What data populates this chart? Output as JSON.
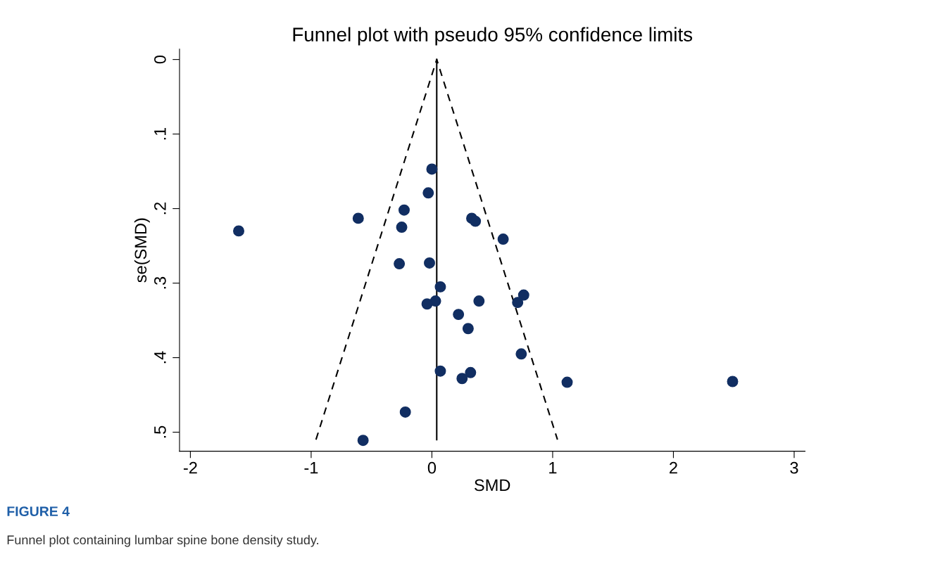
{
  "chart_data": {
    "type": "scatter",
    "title": "Funnel plot with pseudo 95% confidence limits",
    "xlabel": "SMD",
    "ylabel": "se(SMD)",
    "xlim": [
      -2.09,
      3.09
    ],
    "ylim": [
      0.5255,
      -0.014
    ],
    "xticks": [
      -2,
      -1,
      0,
      1,
      2,
      3
    ],
    "yticks": [
      0,
      {
        "value": 0.1,
        "label": ".1"
      },
      {
        "value": 0.2,
        "label": ".2"
      },
      {
        "value": 0.3,
        "label": ".3"
      },
      {
        "value": 0.4,
        "label": ".4"
      },
      {
        "value": 0.5,
        "label": ".5"
      }
    ],
    "grid": false,
    "legend": false,
    "series": [
      {
        "type": "line",
        "color": "#000000",
        "line_style": "dashed",
        "marker": "none",
        "x": [
          -0.96,
          0.04,
          1.04
        ],
        "values": [
          0.51,
          0,
          0.51
        ]
      },
      {
        "type": "line",
        "color": "#000000",
        "line_style": "solid",
        "marker": "none",
        "x": [
          0.04,
          0.04
        ],
        "values": [
          0.51,
          0
        ]
      },
      {
        "color": "#112e62",
        "marker": "circle",
        "x": [
          0.0,
          -0.03,
          -0.23,
          -0.61,
          -1.6,
          -0.25,
          0.33,
          0.36,
          0.59,
          -0.27,
          -0.02,
          0.07,
          0.76,
          0.71,
          0.39,
          0.03,
          -0.04,
          0.22,
          0.3,
          0.74,
          0.07,
          0.32,
          0.25,
          1.12,
          2.49,
          -0.22,
          -0.57
        ],
        "values": [
          0.147,
          0.179,
          0.202,
          0.213,
          0.23,
          0.225,
          0.213,
          0.217,
          0.241,
          0.274,
          0.273,
          0.305,
          0.316,
          0.326,
          0.324,
          0.324,
          0.328,
          0.342,
          0.361,
          0.395,
          0.418,
          0.42,
          0.428,
          0.433,
          0.432,
          0.473,
          0.511
        ]
      }
    ],
    "annotations": [
      "FIGURE 4",
      "Funnel plot containing lumbar spine bone density study."
    ]
  }
}
